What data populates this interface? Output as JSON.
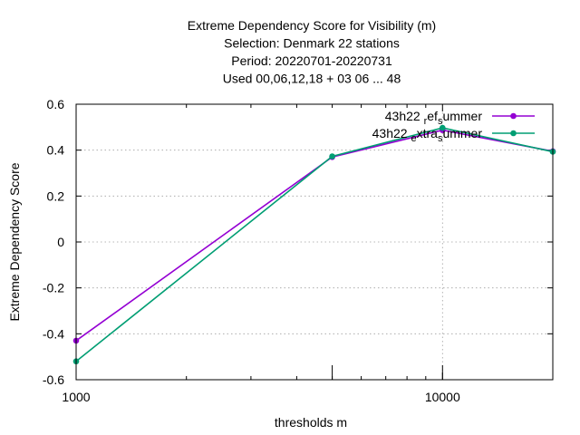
{
  "chart_data": {
    "type": "line",
    "title_lines": [
      "Extreme Dependency Score  for Visibility (m)",
      "Selection: Denmark     22 stations",
      "Period: 20220701-20220731",
      "Used  00,06,12,18  + 03 06 ... 48"
    ],
    "xlabel": "thresholds m",
    "ylabel": "Extreme Dependency Score",
    "x_scale": "log",
    "xlim": [
      1000,
      20000
    ],
    "ylim": [
      -0.6,
      0.6
    ],
    "x_tick_labels": [
      {
        "value": 1000,
        "label": "1000"
      },
      {
        "value": 10000,
        "label": "10000"
      }
    ],
    "y_ticks": [
      -0.6,
      -0.4,
      -0.2,
      0,
      0.2,
      0.4,
      0.6
    ],
    "y_tick_labels": [
      "-0.6",
      "-0.4",
      "-0.2",
      "0",
      "0.2",
      "0.4",
      "0.6"
    ],
    "grid": true,
    "legend_position": "top-right",
    "x": [
      1000,
      5000,
      10000,
      20000
    ],
    "series": [
      {
        "name": "43h22_ref_summer",
        "legend_parts": [
          [
            "43h22 ",
            ""
          ],
          [
            "r",
            "sub"
          ],
          [
            "ef",
            ""
          ],
          [
            "s",
            "sub"
          ],
          [
            "ummer",
            ""
          ]
        ],
        "color": "#9400d3",
        "values": [
          -0.43,
          0.37,
          0.487,
          0.395
        ]
      },
      {
        "name": "43h22_extra_summer",
        "legend_parts": [
          [
            "43h22 ",
            ""
          ],
          [
            "e",
            "sub"
          ],
          [
            "xtra",
            ""
          ],
          [
            "s",
            "sub"
          ],
          [
            "ummer",
            ""
          ]
        ],
        "color": "#009e73",
        "values": [
          -0.52,
          0.373,
          0.497,
          0.393
        ]
      }
    ]
  }
}
